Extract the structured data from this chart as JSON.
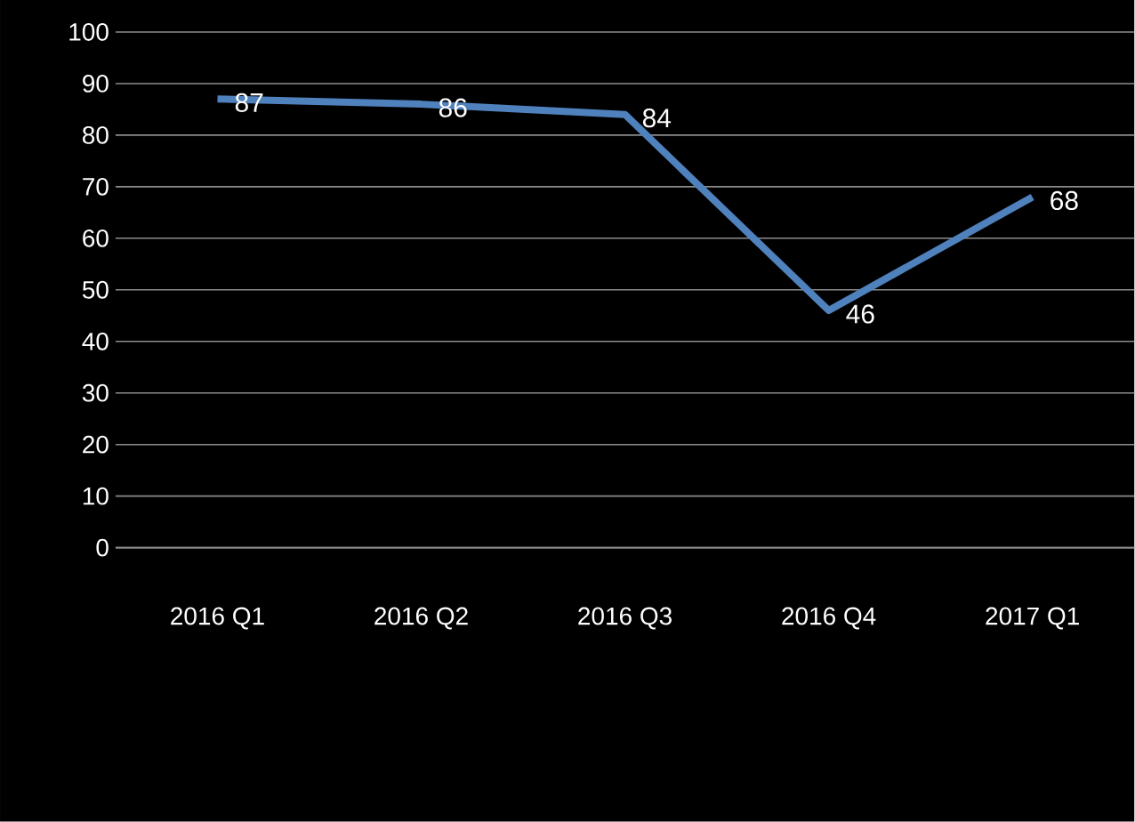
{
  "chart_data": {
    "type": "line",
    "categories": [
      "2016 Q1",
      "2016 Q2",
      "2016 Q3",
      "2016 Q4",
      "2017 Q1"
    ],
    "series": [
      {
        "color": "#4f81bd",
        "values": [
          87,
          86,
          84,
          46,
          68
        ]
      }
    ],
    "ylim": [
      0,
      100
    ],
    "yticks": [
      0,
      10,
      20,
      30,
      40,
      50,
      60,
      70,
      80,
      90,
      100
    ],
    "grid": "y",
    "data_labels": true,
    "marker": "none",
    "line_style": "solid"
  }
}
